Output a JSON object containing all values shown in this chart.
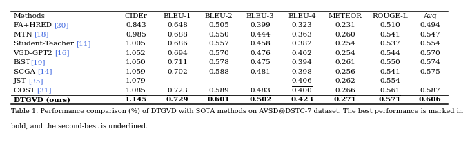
{
  "columns": [
    "Methods",
    "CIDEr",
    "BLEU-1",
    "BLEU-2",
    "BLEU-3",
    "BLEU-4",
    "METEOR",
    "ROUGE-L",
    "Avg"
  ],
  "rows": [
    {
      "method_name": "FA+HRED ",
      "method_ref": "[30]",
      "values": [
        "0.843",
        "0.648",
        "0.505",
        "0.399",
        "0.323",
        "0.231",
        "0.510",
        "0.494"
      ],
      "bold_vals": [],
      "underline_vals": []
    },
    {
      "method_name": "MTN ",
      "method_ref": "[18]",
      "values": [
        "0.985",
        "0.688",
        "0.550",
        "0.444",
        "0.363",
        "0.260",
        "0.541",
        "0.547"
      ],
      "bold_vals": [],
      "underline_vals": []
    },
    {
      "method_name": "Student-Teacher ",
      "method_ref": "[11]",
      "values": [
        "1.005",
        "0.686",
        "0.557",
        "0.458",
        "0.382",
        "0.254",
        "0.537",
        "0.554"
      ],
      "bold_vals": [],
      "underline_vals": []
    },
    {
      "method_name": "VGD-GPT2 ",
      "method_ref": "[16]",
      "values": [
        "1.052",
        "0.694",
        "0.570",
        "0.476",
        "0.402",
        "0.254",
        "0.544",
        "0.570"
      ],
      "bold_vals": [],
      "underline_vals": []
    },
    {
      "method_name": "BiST",
      "method_ref": "[19]",
      "values": [
        "1.050",
        "0.711",
        "0.578",
        "0.475",
        "0.394",
        "0.261",
        "0.550",
        "0.574"
      ],
      "bold_vals": [],
      "underline_vals": []
    },
    {
      "method_name": "SCGA ",
      "method_ref": "[14]",
      "values": [
        "1.059",
        "0.702",
        "0.588",
        "0.481",
        "0.398",
        "0.256",
        "0.541",
        "0.575"
      ],
      "bold_vals": [],
      "underline_vals": []
    },
    {
      "method_name": "JST ",
      "method_ref": "[35]",
      "values": [
        "1.079",
        "-",
        "-",
        "-",
        "0.406",
        "0.262",
        "0.554",
        "-"
      ],
      "bold_vals": [],
      "underline_vals": [
        4
      ]
    },
    {
      "method_name": "COST ",
      "method_ref": "[31]",
      "values": [
        "1.085",
        "0.723",
        "0.589",
        "0.483",
        "0.400",
        "0.266",
        "0.561",
        "0.587"
      ],
      "bold_vals": [],
      "underline_vals": [
        0,
        1,
        2,
        3,
        5,
        6
      ]
    },
    {
      "method_name": "DTGVD (ours)",
      "method_ref": "",
      "values": [
        "1.145",
        "0.729",
        "0.601",
        "0.502",
        "0.423",
        "0.271",
        "0.571",
        "0.606"
      ],
      "bold_vals": [
        0,
        1,
        2,
        3,
        4,
        5,
        6,
        7
      ],
      "underline_vals": []
    }
  ],
  "caption_line1": "Table 1. Performance comparison (%) of DTGVD with SOTA methods on AVSD@DSTC-7 dataset. The best performance is marked in",
  "caption_line2": "bold, and the second-best is underlined.",
  "ref_color": "#4169E1",
  "bg_color": "#ffffff",
  "font_size": 7.5,
  "caption_font_size": 7.0,
  "fig_width": 6.4,
  "fig_height": 1.86,
  "col_widths_rel": [
    2.2,
    0.88,
    0.88,
    0.88,
    0.88,
    0.88,
    0.95,
    0.95,
    0.75
  ]
}
